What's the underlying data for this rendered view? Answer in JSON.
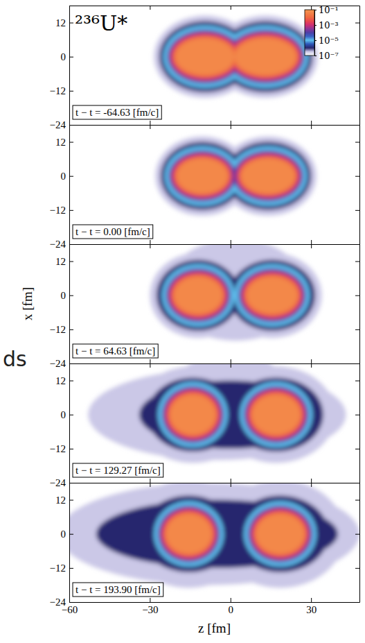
{
  "chart_data": [
    {
      "type": "heatmap",
      "title": "²³⁶U*",
      "annotations": [
        "t − t = -64.63 [fm/c]"
      ],
      "xlim": [
        -60,
        48
      ],
      "xticks": [
        {
          "value": -60,
          "label": "−60"
        },
        {
          "value": -30,
          "label": "−30"
        },
        0,
        30
      ],
      "ylim": [
        -24,
        18
      ],
      "yticks": [
        12,
        0,
        {
          "value": -12,
          "label": "−12"
        },
        {
          "value": -24,
          "label": "−24"
        }
      ],
      "tick_labels": "y",
      "colorbar": {
        "range": [
          1e-07,
          0.1
        ],
        "log": true,
        "ticks": [
          {
            "value": 0.1,
            "label": "10⁻¹"
          },
          {
            "value": 0.001,
            "label": "10⁻³"
          },
          {
            "value": 1e-05,
            "label": "10⁻⁵"
          },
          {
            "value": 1e-07,
            "label": "10⁻⁷"
          }
        ]
      },
      "density": [
        {
          "level": 3e-07,
          "ellipses": [
            [
              -9.5,
              0,
              19,
              14.5
            ],
            [
              13,
              0,
              19.5,
              14.5
            ]
          ]
        },
        {
          "level": 1e-06,
          "ellipses": [
            [
              -9.5,
              0,
              17,
              12.5
            ],
            [
              13,
              0,
              17.5,
              12.5
            ]
          ]
        },
        {
          "level": 1e-05,
          "ellipses": [
            [
              -9.5,
              0,
              15.5,
              11
            ],
            [
              13,
              0,
              16,
              11
            ]
          ]
        },
        {
          "level": 0.0001,
          "ellipses": [
            [
              -9.5,
              0,
              14,
              9.5
            ],
            [
              13,
              0,
              14.5,
              9.5
            ]
          ]
        },
        {
          "level": 0.001,
          "ellipses": [
            [
              -9.5,
              0,
              13,
              8.5
            ],
            [
              13,
              0,
              13.5,
              8.5
            ]
          ]
        },
        {
          "level": 0.01,
          "ellipses": [
            [
              -9.5,
              0,
              12,
              7.5
            ],
            [
              13,
              0,
              12.5,
              7.5
            ]
          ]
        },
        {
          "level": 0.05,
          "ellipses": [
            [
              -9.5,
              0,
              11,
              6.5
            ],
            [
              13,
              0,
              11.5,
              6.5
            ]
          ]
        }
      ]
    },
    {
      "type": "heatmap",
      "annotations": [
        "t − t = 0.00 [fm/c]"
      ],
      "xlim": [
        -60,
        48
      ],
      "xticks": [
        {
          "value": -60,
          "label": "−60"
        },
        {
          "value": -30,
          "label": "−30"
        },
        0,
        30
      ],
      "ylim": [
        -24,
        18
      ],
      "yticks": [
        12,
        0,
        {
          "value": -12,
          "label": "−12"
        },
        {
          "value": -24,
          "label": "−24"
        }
      ],
      "tick_labels": "y",
      "density": [
        {
          "level": 3e-07,
          "ellipses": [
            [
              -10.5,
              0,
              17.5,
              14
            ],
            [
              14,
              0,
              18,
              14
            ]
          ]
        },
        {
          "level": 1e-06,
          "ellipses": [
            [
              -10.5,
              0,
              15.5,
              12
            ],
            [
              14,
              0,
              16,
              12
            ]
          ]
        },
        {
          "level": 1e-05,
          "ellipses": [
            [
              -10.5,
              0,
              14,
              10.5
            ],
            [
              14,
              0,
              14.5,
              10.5
            ]
          ]
        },
        {
          "level": 0.0001,
          "ellipses": [
            [
              -10.5,
              0,
              12.5,
              9
            ],
            [
              14,
              0,
              13,
              9
            ]
          ]
        },
        {
          "level": 0.001,
          "ellipses": [
            [
              -10.5,
              0,
              11.5,
              8
            ],
            [
              14,
              0,
              12,
              8
            ]
          ]
        },
        {
          "level": 0.01,
          "ellipses": [
            [
              -10.5,
              0,
              10.5,
              7
            ],
            [
              14,
              0,
              11,
              7
            ]
          ]
        },
        {
          "level": 0.05,
          "ellipses": [
            [
              -10.5,
              0,
              9.5,
              6.2
            ],
            [
              14,
              0,
              10,
              6.2
            ]
          ]
        }
      ]
    },
    {
      "type": "heatmap",
      "annotations": [
        "t − t = 64.63 [fm/c]"
      ],
      "ylabel": "x [fm]",
      "xlim": [
        -60,
        48
      ],
      "xticks": [
        {
          "value": -60,
          "label": "−60"
        },
        {
          "value": -30,
          "label": "−30"
        },
        0,
        30
      ],
      "ylim": [
        -24,
        18
      ],
      "yticks": [
        12,
        0,
        {
          "value": -12,
          "label": "−12"
        },
        {
          "value": -24,
          "label": "−24"
        }
      ],
      "tick_labels": "y",
      "density": [
        {
          "level": 3e-07,
          "ellipses": [
            [
              -12,
              0,
              18,
              15
            ],
            [
              15.5,
              0,
              18.5,
              15
            ],
            [
              2,
              2,
              26,
              18
            ]
          ]
        },
        {
          "level": 1e-06,
          "ellipses": [
            [
              -12,
              0,
              15.5,
              12.5
            ],
            [
              15.5,
              0,
              16,
              12.5
            ]
          ]
        },
        {
          "level": 1e-05,
          "ellipses": [
            [
              -12,
              0,
              13.5,
              11
            ],
            [
              15.5,
              0,
              14,
              11
            ]
          ]
        },
        {
          "level": 0.0001,
          "ellipses": [
            [
              -12,
              0,
              12,
              9.5
            ],
            [
              15.5,
              0,
              12.5,
              9.5
            ]
          ]
        },
        {
          "level": 0.001,
          "ellipses": [
            [
              -12,
              0,
              11,
              8.5
            ],
            [
              15.5,
              0,
              11.5,
              8.5
            ]
          ]
        },
        {
          "level": 0.01,
          "ellipses": [
            [
              -12,
              0,
              10,
              7.5
            ],
            [
              15.5,
              0,
              10.5,
              7.5
            ]
          ]
        },
        {
          "level": 0.05,
          "ellipses": [
            [
              -12,
              0,
              9,
              6.5
            ],
            [
              15.5,
              0,
              9.5,
              6.5
            ]
          ]
        }
      ]
    },
    {
      "type": "heatmap",
      "annotations": [
        "t − t = 129.27 [fm/c]"
      ],
      "xlim": [
        -60,
        48
      ],
      "xticks": [
        {
          "value": -60,
          "label": "−60"
        },
        {
          "value": -30,
          "label": "−30"
        },
        0,
        30
      ],
      "ylim": [
        -24,
        18
      ],
      "yticks": [
        12,
        0,
        {
          "value": -12,
          "label": "−12"
        },
        {
          "value": -24,
          "label": "−24"
        }
      ],
      "tick_labels": "y",
      "density": [
        {
          "level": 3e-07,
          "ellipses": [
            [
              -14,
              0,
              22,
              17
            ],
            [
              17,
              0,
              22,
              17
            ],
            [
              -5,
              0,
              48,
              16
            ],
            [
              0,
              10,
              20,
              12
            ]
          ]
        },
        {
          "level": 1e-06,
          "ellipses": [
            [
              -14,
              0,
              17,
              13
            ],
            [
              17,
              0,
              17.5,
              13
            ],
            [
              0,
              0,
              34,
              12
            ]
          ]
        },
        {
          "level": 1e-05,
          "ellipses": [
            [
              -14,
              0,
              13,
              11.5
            ],
            [
              17,
              0,
              13.5,
              11.5
            ]
          ]
        },
        {
          "level": 0.0001,
          "ellipses": [
            [
              -14,
              0,
              11.5,
              10
            ],
            [
              17,
              0,
              12,
              10
            ]
          ]
        },
        {
          "level": 0.001,
          "ellipses": [
            [
              -14,
              0,
              10.5,
              9
            ],
            [
              17,
              0,
              11,
              9
            ]
          ]
        },
        {
          "level": 0.01,
          "ellipses": [
            [
              -14,
              0,
              9.5,
              8
            ],
            [
              17,
              0,
              10,
              8
            ]
          ]
        },
        {
          "level": 0.05,
          "ellipses": [
            [
              -14,
              0,
              8.5,
              7
            ],
            [
              17,
              0,
              9,
              7
            ]
          ]
        }
      ]
    },
    {
      "type": "heatmap",
      "annotations": [
        "t − t = 193.90 [fm/c]"
      ],
      "xlabel": "z [fm]",
      "xlim": [
        -60,
        48
      ],
      "xticks": [
        {
          "value": -60,
          "label": "−60"
        },
        {
          "value": -30,
          "label": "−30"
        },
        0,
        30
      ],
      "ylim": [
        -24,
        18
      ],
      "yticks": [
        12,
        0,
        {
          "value": -12,
          "label": "−12"
        },
        {
          "value": -24,
          "label": "−24"
        }
      ],
      "density": [
        {
          "level": 3e-07,
          "ellipses": [
            [
              -15.5,
              0,
              24,
              19
            ],
            [
              18.5,
              0,
              24,
              19
            ],
            [
              -8,
              0,
              56,
              18
            ]
          ]
        },
        {
          "level": 1e-06,
          "ellipses": [
            [
              -15.5,
              0,
              18,
              13.5
            ],
            [
              18.5,
              0,
              18,
              13.5
            ],
            [
              -5,
              0,
              45,
              12
            ]
          ]
        },
        {
          "level": 1e-05,
          "ellipses": [
            [
              -15.5,
              0,
              13,
              11.5
            ],
            [
              18.5,
              0,
              13.5,
              11.5
            ]
          ]
        },
        {
          "level": 0.0001,
          "ellipses": [
            [
              -15.5,
              0,
              11.5,
              10
            ],
            [
              18.5,
              0,
              12,
              10
            ]
          ]
        },
        {
          "level": 0.001,
          "ellipses": [
            [
              -15.5,
              0,
              10.5,
              9
            ],
            [
              18.5,
              0,
              11,
              9
            ]
          ]
        },
        {
          "level": 0.01,
          "ellipses": [
            [
              -15.5,
              0,
              9.5,
              8
            ],
            [
              18.5,
              0,
              10,
              8
            ]
          ]
        },
        {
          "level": 0.05,
          "ellipses": [
            [
              -15.5,
              0,
              8.5,
              7
            ],
            [
              18.5,
              0,
              9,
              7
            ]
          ]
        }
      ]
    }
  ],
  "side_text": "ds"
}
